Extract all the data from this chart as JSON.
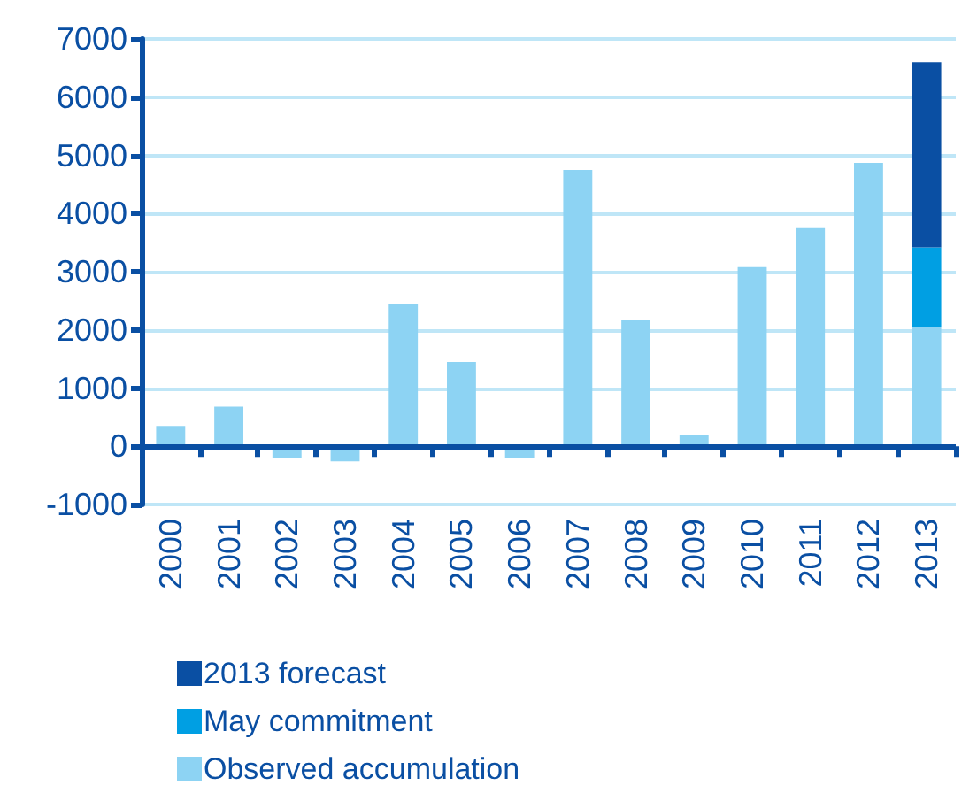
{
  "chart_data": {
    "type": "bar",
    "stacked": true,
    "categories": [
      "2000",
      "2001",
      "2002",
      "2003",
      "2004",
      "2005",
      "2006",
      "2007",
      "2008",
      "2009",
      "2010",
      "2011",
      "2012",
      "2013"
    ],
    "series": [
      {
        "name": "Observed accumulation",
        "color": "#8dd3f3",
        "values": [
          350,
          680,
          -200,
          -260,
          2450,
          1450,
          -200,
          4750,
          2180,
          200,
          3080,
          3750,
          4870,
          2050
        ]
      },
      {
        "name": "May commitment",
        "color": "#009fe3",
        "values": [
          null,
          null,
          null,
          null,
          null,
          null,
          null,
          null,
          null,
          null,
          null,
          null,
          null,
          1370
        ]
      },
      {
        "name": "2013 forecast",
        "color": "#0a4fa3",
        "values": [
          null,
          null,
          null,
          null,
          null,
          null,
          null,
          null,
          null,
          null,
          null,
          null,
          null,
          3180
        ]
      }
    ],
    "ylim": [
      -1000,
      7000
    ],
    "yticks": [
      -1000,
      0,
      1000,
      2000,
      3000,
      4000,
      5000,
      6000,
      7000
    ],
    "grid": "y",
    "ref_lines": [
      {
        "axis": "y",
        "value": 0,
        "color": "#0a4fa3"
      }
    ],
    "legend": "bottom left"
  }
}
